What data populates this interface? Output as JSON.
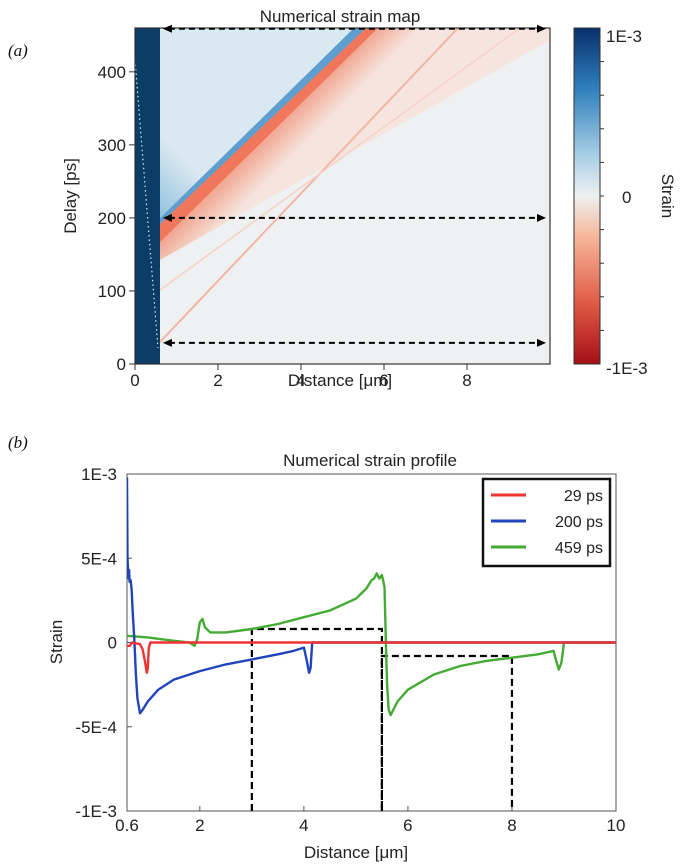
{
  "panel_labels": {
    "a": "(a)",
    "b": "(b)"
  },
  "chart_data": [
    {
      "type": "heatmap",
      "title": "Numerical strain map",
      "xlabel": "Distance [μm]",
      "ylabel": "Delay [ps]",
      "xticks": [
        "0",
        "2",
        "4",
        "6",
        "8"
      ],
      "yticks": [
        "0",
        "100",
        "200",
        "300",
        "400"
      ],
      "xlim": [
        0,
        10
      ],
      "ylim": [
        0,
        460
      ],
      "colorbar": {
        "label": "Strain",
        "ticks": [
          "1E-3",
          "0",
          "-1E-3"
        ],
        "range": [
          -0.001,
          0.001
        ],
        "colors": {
          "positive": "#08306b",
          "mid": "#eef0f1",
          "negative": "#a50f15"
        }
      },
      "features": {
        "film_thickness_um": 0.6,
        "expansion_front": {
          "from": [
            0.6,
            200
          ],
          "to": [
            5.3,
            460
          ]
        },
        "compression_front": {
          "from": [
            0.6,
            170
          ],
          "to": [
            5.6,
            460
          ]
        },
        "weak_echo": {
          "from": [
            0.6,
            30
          ],
          "to": [
            7.2,
            460
          ]
        }
      },
      "marked_delays_ps": [
        29,
        200,
        459
      ]
    },
    {
      "type": "line",
      "title": "Numerical strain profile",
      "xlabel": "Distance [μm]",
      "ylabel": "Strain",
      "xticks": [
        "0.6",
        "2",
        "4",
        "6",
        "8",
        "10"
      ],
      "yticks": [
        "1E-3",
        "5E-4",
        "0",
        "-5E-4",
        "-1E-3"
      ],
      "xlim": [
        0.6,
        10
      ],
      "ylim": [
        -0.001,
        0.001
      ],
      "legend_position": "top-right",
      "series": [
        {
          "name": "29 ps",
          "color": "#ee3333",
          "points": [
            [
              0.6,
              -2e-05
            ],
            [
              0.65,
              -2e-05
            ],
            [
              0.7,
              0
            ],
            [
              0.85,
              -1e-05
            ],
            [
              0.9,
              -4e-05
            ],
            [
              0.95,
              -0.00012
            ],
            [
              0.98,
              -0.00018
            ],
            [
              1.0,
              -0.00015
            ],
            [
              1.02,
              -3e-05
            ],
            [
              1.05,
              0
            ],
            [
              2,
              0
            ],
            [
              4,
              0
            ],
            [
              6,
              0
            ],
            [
              8,
              0
            ],
            [
              10,
              0
            ]
          ]
        },
        {
          "name": "200 ps",
          "color": "#2244bb",
          "points": [
            [
              0.6,
              0.00098
            ],
            [
              0.61,
              0.0005
            ],
            [
              0.62,
              0.00044
            ],
            [
              0.63,
              0.00038
            ],
            [
              0.64,
              0.00043
            ],
            [
              0.65,
              0.00036
            ],
            [
              0.67,
              0.00037
            ],
            [
              0.69,
              0.00031
            ],
            [
              0.71,
              0.00018
            ],
            [
              0.74,
              2e-05
            ],
            [
              0.77,
              -0.00018
            ],
            [
              0.8,
              -0.00033
            ],
            [
              0.85,
              -0.00042
            ],
            [
              0.9,
              -0.0004
            ],
            [
              1.0,
              -0.00035
            ],
            [
              1.2,
              -0.00028
            ],
            [
              1.5,
              -0.00022
            ],
            [
              2.0,
              -0.00017
            ],
            [
              2.5,
              -0.00013
            ],
            [
              3.0,
              -0.0001
            ],
            [
              3.5,
              -7e-05
            ],
            [
              3.8,
              -5e-05
            ],
            [
              4.0,
              -3e-05
            ],
            [
              4.05,
              -0.0001
            ],
            [
              4.1,
              -0.00018
            ],
            [
              4.13,
              -0.00015
            ],
            [
              4.16,
              0
            ],
            [
              4.5,
              0
            ],
            [
              6,
              0
            ],
            [
              8,
              0
            ],
            [
              8.8,
              0
            ],
            [
              10,
              0
            ]
          ]
        },
        {
          "name": "459 ps",
          "color": "#44aa33",
          "points": [
            [
              0.6,
              4e-05
            ],
            [
              1.0,
              3e-05
            ],
            [
              1.5,
              1e-05
            ],
            [
              1.8,
              0
            ],
            [
              1.9,
              -2e-05
            ],
            [
              1.95,
              2e-05
            ],
            [
              2.0,
              0.00012
            ],
            [
              2.05,
              0.00014
            ],
            [
              2.1,
              9e-05
            ],
            [
              2.2,
              6e-05
            ],
            [
              2.5,
              6e-05
            ],
            [
              3.0,
              8e-05
            ],
            [
              3.5,
              0.00011
            ],
            [
              4.0,
              0.00015
            ],
            [
              4.5,
              0.00019
            ],
            [
              5.0,
              0.00026
            ],
            [
              5.2,
              0.00032
            ],
            [
              5.3,
              0.00037
            ],
            [
              5.35,
              0.00038
            ],
            [
              5.4,
              0.00041
            ],
            [
              5.45,
              0.00038
            ],
            [
              5.5,
              0.0004
            ],
            [
              5.55,
              0.00033
            ],
            [
              5.58,
              -5e-05
            ],
            [
              5.6,
              -0.00025
            ],
            [
              5.63,
              -0.0004
            ],
            [
              5.67,
              -0.00043
            ],
            [
              5.8,
              -0.00035
            ],
            [
              6.0,
              -0.00028
            ],
            [
              6.5,
              -0.00019
            ],
            [
              7.0,
              -0.00014
            ],
            [
              7.5,
              -0.00011
            ],
            [
              8.0,
              -9e-05
            ],
            [
              8.5,
              -7e-05
            ],
            [
              8.8,
              -5e-05
            ],
            [
              8.85,
              -0.00011
            ],
            [
              8.9,
              -0.00016
            ],
            [
              8.95,
              -0.00012
            ],
            [
              9.0,
              0
            ],
            [
              10,
              0
            ]
          ]
        }
      ],
      "markers": [
        {
          "x1": 3.0,
          "x2": 5.5,
          "level": 8e-05
        },
        {
          "x1": 5.5,
          "x2": 8.0,
          "level": -8e-05
        }
      ]
    }
  ]
}
